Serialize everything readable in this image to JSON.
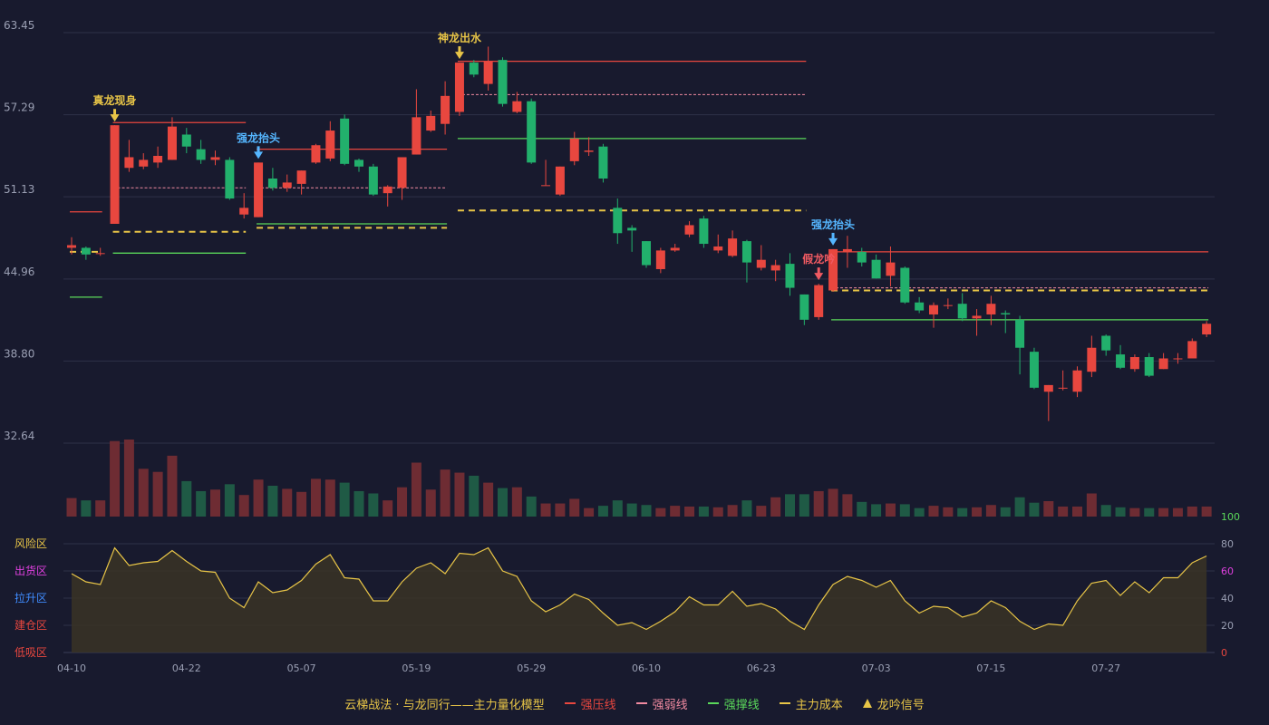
{
  "colors": {
    "up": "#e8473f",
    "down": "#22b06c",
    "vol_up": "#6e2c33",
    "vol_down": "#1f5a45",
    "pressure": "#e8473f",
    "weak": "#f08aa0",
    "support": "#5ad85a",
    "cost": "#e8c547",
    "osc": "#e8c547",
    "grid": "#2e3148",
    "axis_text": "#9a9fb3"
  },
  "chart_data": {
    "type": "candlestick",
    "price_axis": {
      "ticks": [
        "63.45",
        "57.29",
        "51.13",
        "44.96",
        "38.80",
        "32.64"
      ],
      "range": [
        32.64,
        63.45
      ]
    },
    "x_ticks": [
      {
        "label": "04-10",
        "i": 0
      },
      {
        "label": "04-22",
        "i": 8
      },
      {
        "label": "05-07",
        "i": 16
      },
      {
        "label": "05-19",
        "i": 24
      },
      {
        "label": "05-29",
        "i": 32
      },
      {
        "label": "06-10",
        "i": 40
      },
      {
        "label": "06-23",
        "i": 48
      },
      {
        "label": "07-03",
        "i": 56
      },
      {
        "label": "07-15",
        "i": 64
      },
      {
        "label": "07-27",
        "i": 72
      }
    ],
    "candles": [
      [
        47.3,
        47.5,
        46.8,
        48.1
      ],
      [
        47.3,
        46.8,
        46.4,
        47.4
      ],
      [
        46.9,
        46.9,
        46.7,
        47.3
      ],
      [
        49.1,
        56.5,
        49.1,
        56.5
      ],
      [
        53.3,
        54.1,
        53.0,
        55.4
      ],
      [
        53.4,
        53.9,
        53.2,
        54.4
      ],
      [
        53.7,
        54.2,
        53.3,
        54.9
      ],
      [
        53.9,
        56.4,
        53.9,
        57.1
      ],
      [
        55.8,
        54.9,
        54.4,
        56.3
      ],
      [
        54.7,
        53.9,
        53.6,
        55.4
      ],
      [
        53.9,
        54.1,
        53.5,
        54.6
      ],
      [
        53.9,
        51.0,
        50.9,
        54.1
      ],
      [
        49.8,
        50.3,
        49.5,
        51.4
      ],
      [
        49.6,
        53.7,
        49.6,
        53.7
      ],
      [
        52.5,
        51.8,
        51.6,
        53.3
      ],
      [
        51.8,
        52.2,
        51.5,
        52.8
      ],
      [
        52.1,
        53.1,
        51.3,
        53.1
      ],
      [
        53.7,
        55.0,
        53.6,
        55.1
      ],
      [
        54.0,
        56.1,
        53.8,
        56.8
      ],
      [
        57.0,
        53.6,
        53.5,
        57.3
      ],
      [
        53.9,
        53.4,
        53.0,
        54.0
      ],
      [
        53.4,
        51.3,
        51.2,
        53.6
      ],
      [
        51.4,
        51.9,
        50.4,
        52.0
      ],
      [
        51.8,
        54.1,
        50.9,
        54.1
      ],
      [
        54.3,
        57.1,
        54.3,
        59.2
      ],
      [
        56.1,
        57.2,
        56.0,
        57.6
      ],
      [
        56.6,
        58.7,
        55.8,
        59.8
      ],
      [
        57.5,
        61.2,
        57.2,
        61.2
      ],
      [
        61.2,
        60.3,
        60.1,
        61.4
      ],
      [
        59.6,
        61.3,
        59.1,
        62.4
      ],
      [
        61.4,
        58.1,
        57.9,
        61.6
      ],
      [
        57.5,
        58.3,
        57.4,
        59.0
      ],
      [
        58.3,
        53.7,
        53.6,
        58.5
      ],
      [
        52.0,
        52.0,
        52.0,
        53.9
      ],
      [
        51.3,
        53.4,
        51.2,
        53.4
      ],
      [
        53.8,
        55.5,
        53.5,
        56.0
      ],
      [
        54.5,
        54.6,
        54.2,
        55.6
      ],
      [
        54.9,
        52.5,
        52.2,
        55.1
      ],
      [
        50.3,
        48.4,
        47.6,
        51.0
      ],
      [
        48.8,
        48.6,
        47.0,
        49.0
      ],
      [
        47.8,
        46.0,
        45.8,
        47.8
      ],
      [
        45.7,
        47.1,
        45.4,
        47.3
      ],
      [
        47.1,
        47.3,
        47.0,
        47.6
      ],
      [
        48.3,
        49.0,
        48.1,
        49.3
      ],
      [
        49.5,
        47.6,
        47.3,
        49.7
      ],
      [
        47.1,
        47.4,
        46.9,
        48.3
      ],
      [
        46.7,
        48.0,
        46.6,
        48.6
      ],
      [
        47.8,
        46.2,
        44.7,
        47.9
      ],
      [
        45.8,
        46.4,
        45.6,
        47.5
      ],
      [
        45.6,
        46.0,
        44.8,
        46.4
      ],
      [
        46.1,
        44.3,
        43.7,
        46.9
      ],
      [
        43.8,
        41.9,
        41.5,
        43.8
      ],
      [
        42.1,
        44.5,
        41.9,
        44.6
      ],
      [
        44.1,
        47.2,
        44.0,
        47.2
      ],
      [
        47.0,
        47.2,
        45.8,
        48.2
      ],
      [
        47.0,
        46.2,
        45.9,
        47.3
      ],
      [
        46.4,
        45.0,
        45.0,
        46.8
      ],
      [
        45.2,
        46.2,
        44.4,
        47.4
      ],
      [
        45.8,
        43.2,
        43.1,
        45.9
      ],
      [
        43.2,
        42.6,
        42.4,
        43.6
      ],
      [
        42.3,
        43.0,
        41.3,
        43.2
      ],
      [
        43.0,
        43.0,
        42.7,
        43.5
      ],
      [
        43.1,
        42.0,
        41.8,
        43.9
      ],
      [
        42.0,
        42.2,
        40.7,
        42.7
      ],
      [
        42.3,
        43.1,
        41.5,
        43.7
      ],
      [
        42.4,
        42.3,
        40.9,
        42.6
      ],
      [
        41.9,
        39.8,
        37.8,
        42.2
      ],
      [
        39.5,
        36.8,
        36.7,
        39.8
      ],
      [
        36.5,
        37.0,
        34.3,
        37.0
      ],
      [
        36.8,
        36.8,
        36.6,
        38.1
      ],
      [
        36.5,
        38.1,
        36.1,
        38.4
      ],
      [
        38.0,
        39.8,
        37.6,
        40.7
      ],
      [
        40.7,
        39.6,
        39.2,
        40.8
      ],
      [
        39.3,
        38.3,
        38.2,
        40.0
      ],
      [
        38.2,
        39.1,
        38.0,
        39.3
      ],
      [
        39.1,
        37.7,
        37.6,
        39.4
      ],
      [
        38.2,
        39.0,
        38.2,
        39.4
      ],
      [
        39.0,
        39.0,
        38.6,
        39.4
      ],
      [
        39.0,
        40.3,
        39.0,
        40.5
      ],
      [
        40.8,
        41.6,
        40.6,
        41.8
      ]
    ],
    "volume": [
      24,
      21,
      21,
      98,
      100,
      62,
      58,
      79,
      46,
      33,
      35,
      42,
      28,
      48,
      40,
      36,
      32,
      49,
      48,
      44,
      33,
      30,
      21,
      38,
      70,
      35,
      61,
      57,
      53,
      44,
      37,
      38,
      26,
      17,
      17,
      23,
      11,
      14,
      21,
      17,
      15,
      11,
      14,
      13,
      13,
      12,
      15,
      21,
      14,
      25,
      29,
      29,
      33,
      36,
      29,
      19,
      16,
      17,
      16,
      11,
      14,
      12,
      11,
      12,
      15,
      12,
      25,
      18,
      20,
      13,
      13,
      30,
      15,
      12,
      11,
      11,
      11,
      11,
      13,
      13
    ],
    "vol_max": 100,
    "oscillator": {
      "axis_ticks": [
        "100",
        "80",
        "60",
        "40",
        "20",
        "0"
      ],
      "zones": [
        "风险区",
        "出货区",
        "拉升区",
        "建仓区",
        "低吸区"
      ],
      "zone_colors": [
        "#e8c547",
        "#e040e0",
        "#3f8cff",
        "#e8473f",
        "#e8473f"
      ],
      "values": [
        58,
        52,
        50,
        77,
        64,
        66,
        67,
        75,
        67,
        60,
        59,
        40,
        33,
        52,
        44,
        46,
        53,
        65,
        72,
        55,
        54,
        38,
        38,
        52,
        62,
        66,
        58,
        73,
        72,
        77,
        60,
        56,
        38,
        30,
        35,
        43,
        39,
        29,
        20,
        22,
        17,
        23,
        30,
        41,
        35,
        35,
        45,
        34,
        36,
        32,
        23,
        17,
        35,
        50,
        56,
        53,
        48,
        53,
        38,
        29,
        34,
        33,
        26,
        29,
        38,
        33,
        23,
        17,
        21,
        20,
        38,
        51,
        53,
        42,
        52,
        44,
        55,
        55,
        66,
        71
      ]
    },
    "lines": [
      {
        "type": "pressure",
        "i0": 0,
        "i1": 2,
        "y": 50.0
      },
      {
        "type": "support",
        "i0": 0,
        "i1": 2,
        "y": 43.6
      },
      {
        "type": "cost",
        "i0": 0,
        "i1": 2,
        "y": 47.0
      },
      {
        "type": "pressure",
        "i0": 3,
        "i1": 12,
        "y": 56.7
      },
      {
        "type": "weak",
        "i0": 3,
        "i1": 12,
        "y": 51.8
      },
      {
        "type": "cost",
        "i0": 3,
        "i1": 12,
        "y": 48.5
      },
      {
        "type": "support",
        "i0": 3,
        "i1": 12,
        "y": 46.9
      },
      {
        "type": "pressure",
        "i0": 13,
        "i1": 26,
        "y": 54.7
      },
      {
        "type": "weak",
        "i0": 13,
        "i1": 26,
        "y": 51.8
      },
      {
        "type": "support",
        "i0": 13,
        "i1": 26,
        "y": 49.1
      },
      {
        "type": "cost",
        "i0": 13,
        "i1": 26,
        "y": 48.8
      },
      {
        "type": "pressure",
        "i0": 27,
        "i1": 51,
        "y": 61.3
      },
      {
        "type": "weak",
        "i0": 27,
        "i1": 51,
        "y": 58.8
      },
      {
        "type": "support",
        "i0": 27,
        "i1": 51,
        "y": 55.5
      },
      {
        "type": "cost",
        "i0": 27,
        "i1": 51,
        "y": 50.1
      },
      {
        "type": "pressure",
        "i0": 53,
        "i1": 79,
        "y": 47.0
      },
      {
        "type": "weak",
        "i0": 53,
        "i1": 79,
        "y": 44.3
      },
      {
        "type": "cost",
        "i0": 53,
        "i1": 79,
        "y": 44.1
      },
      {
        "type": "support",
        "i0": 53,
        "i1": 79,
        "y": 41.9
      }
    ],
    "signals": [
      {
        "i": 3,
        "label": "真龙现身",
        "color": "#e8c547"
      },
      {
        "i": 13,
        "label": "强龙抬头",
        "color": "#55b6ff"
      },
      {
        "i": 27,
        "label": "神龙出水",
        "color": "#e8c547"
      },
      {
        "i": 52,
        "label": "假龙吟",
        "color": "#f05a62"
      },
      {
        "i": 53,
        "label": "强龙抬头",
        "color": "#55b6ff"
      }
    ]
  },
  "legend": {
    "title": "云梯战法 · 与龙同行——主力量化模型",
    "items": [
      {
        "label": "强压线",
        "color": "#e8473f",
        "style": "solid"
      },
      {
        "label": "强弱线",
        "color": "#f08aa0",
        "style": "dash"
      },
      {
        "label": "强撑线",
        "color": "#5ad85a",
        "style": "solid"
      },
      {
        "label": "主力成本",
        "color": "#e8c547",
        "style": "dash"
      },
      {
        "label": "龙吟信号",
        "color": "#e8c547",
        "style": "tri"
      }
    ]
  }
}
